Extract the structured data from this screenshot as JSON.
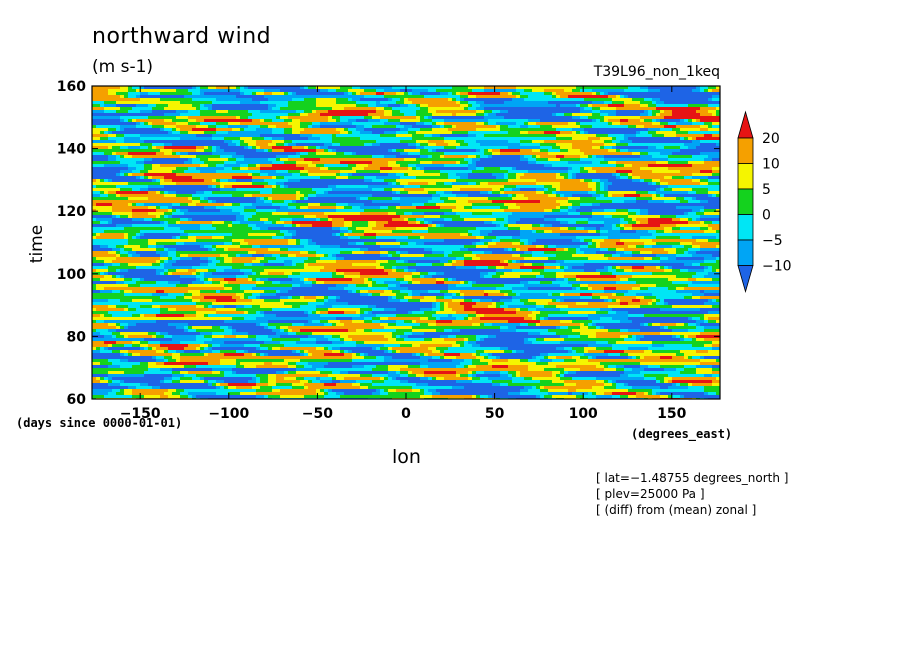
{
  "chart_data": {
    "type": "heatmap",
    "title": "northward wind",
    "units_label": "(m s-1)",
    "run_label": "T39L96_non_1keq",
    "xlabel": "lon",
    "xunit": "(degrees_east)",
    "ylabel": "time",
    "yunit": "(days since 0000-01-01)",
    "xlim": [
      -177.2,
      177.2
    ],
    "ylim": [
      60,
      160
    ],
    "xticks": [
      -150,
      -100,
      -50,
      0,
      50,
      100,
      150
    ],
    "yticks": [
      60,
      80,
      100,
      120,
      140,
      160
    ],
    "colorbar": {
      "levels": [
        -10,
        -5,
        0,
        5,
        10,
        20
      ],
      "labels": [
        "20",
        "10",
        "5",
        "0",
        "−5",
        "−10"
      ],
      "colors": [
        "#1e64e6",
        "#00a5f5",
        "#00e6f5",
        "#14d21e",
        "#f5f500",
        "#f5a000",
        "#e61414"
      ],
      "extend": "both"
    },
    "notes": [
      "[ lat=−1.48755 degrees_north ]",
      "[ plev=25000 Pa ]",
      "[ (diff) from (mean) zonal ]"
    ]
  }
}
